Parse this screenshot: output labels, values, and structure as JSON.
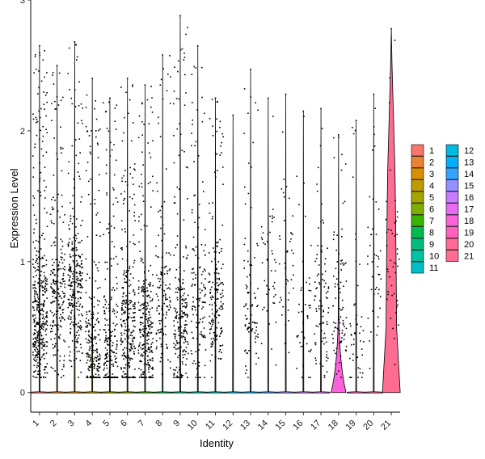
{
  "chart_data": {
    "type": "violin",
    "title": "",
    "xlabel": "Identity",
    "ylabel": "Expression Level",
    "ylim": [
      -0.15,
      3.0
    ],
    "yticks": [
      0,
      1,
      2,
      3
    ],
    "grid": false,
    "legend_position": "right",
    "categories": [
      "1",
      "2",
      "3",
      "4",
      "5",
      "6",
      "7",
      "8",
      "9",
      "10",
      "11",
      "12",
      "13",
      "14",
      "15",
      "16",
      "17",
      "18",
      "19",
      "20",
      "21"
    ],
    "colors": [
      "#F8766D",
      "#EA8331",
      "#D89000",
      "#C09B00",
      "#A3A500",
      "#7CAE00",
      "#39B600",
      "#00BB4E",
      "#00BF7D",
      "#00C1A3",
      "#00BFC4",
      "#00BAE0",
      "#00B0F6",
      "#35A2FF",
      "#9590FF",
      "#C77CFF",
      "#E76BF3",
      "#FA62DB",
      "#FF62BC",
      "#FF6A98",
      "#FF6C91"
    ],
    "series": [
      {
        "name": "1",
        "max": 2.65,
        "density": 9,
        "center": 0.6
      },
      {
        "name": "2",
        "max": 2.5,
        "density": 5,
        "center": 0.7
      },
      {
        "name": "3",
        "max": 2.68,
        "density": 6,
        "center": 0.8
      },
      {
        "name": "4",
        "max": 2.4,
        "density": 5,
        "center": 0.35
      },
      {
        "name": "5",
        "max": 2.25,
        "density": 5,
        "center": 0.3
      },
      {
        "name": "6",
        "max": 2.4,
        "density": 6,
        "center": 0.45
      },
      {
        "name": "7",
        "max": 2.35,
        "density": 6,
        "center": 0.45
      },
      {
        "name": "8",
        "max": 2.58,
        "density": 3,
        "center": 0.7
      },
      {
        "name": "9",
        "max": 2.88,
        "density": 5,
        "center": 0.5
      },
      {
        "name": "10",
        "max": 2.65,
        "density": 3,
        "center": 0.6
      },
      {
        "name": "11",
        "max": 2.25,
        "density": 4,
        "center": 0.7
      },
      {
        "name": "12",
        "max": 2.12,
        "density": 0,
        "center": 1.0
      },
      {
        "name": "13",
        "max": 2.47,
        "density": 2,
        "center": 0.6
      },
      {
        "name": "14",
        "max": 2.25,
        "density": 1,
        "center": 1.0
      },
      {
        "name": "15",
        "max": 2.28,
        "density": 1,
        "center": 0.8
      },
      {
        "name": "16",
        "max": 2.15,
        "density": 1,
        "center": 0.6
      },
      {
        "name": "17",
        "max": 2.17,
        "density": 2,
        "center": 0.7
      },
      {
        "name": "18",
        "max": 1.97,
        "density": 2,
        "center": 0.6
      },
      {
        "name": "19",
        "max": 2.08,
        "density": 1,
        "center": 0.4
      },
      {
        "name": "20",
        "max": 2.28,
        "density": 1,
        "center": 1.0
      },
      {
        "name": "21",
        "max": 2.78,
        "density": 1,
        "center": 1.0
      }
    ]
  }
}
